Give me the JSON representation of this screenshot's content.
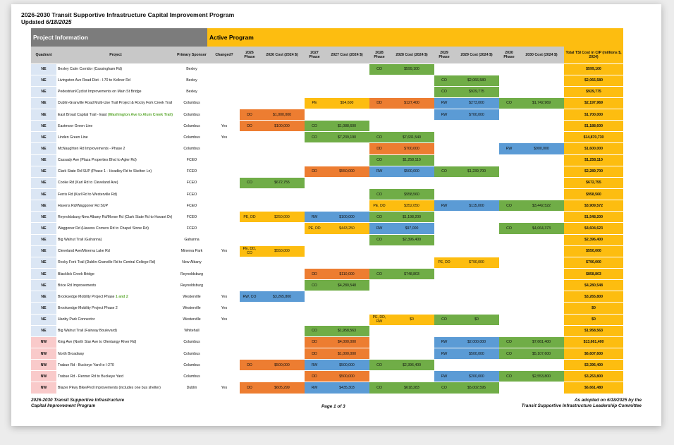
{
  "title": "2026-2030 Transit Supportive Infrastructure Capital Improvement Program",
  "updated_label": "Updated ",
  "updated_date": "6/18/2025",
  "sections": {
    "info": "Project Information",
    "active": "Active Program"
  },
  "columns": {
    "quadrant": "Quadrant",
    "project": "Project",
    "sponsor": "Primary Sponsor",
    "changed": "Changed?",
    "p26": "2026 Phase",
    "c26": "2026 Cost (2024 $)",
    "p27": "2027 Phase",
    "c27": "2027 Cost (2024 $)",
    "p28": "2028 Phase",
    "c28": "2028 Cost (2024 $)",
    "p29": "2029 Phase",
    "c29": "2029 Cost (2024 $)",
    "p30": "2030 Phase",
    "c30": "2030 Cost (2024 $)",
    "total": "Total TSI Cost in CIP (millions $, 2024)"
  },
  "phase_colors": {
    "CO": "#70ad47",
    "DD": "#ed7d31",
    "RW": "#5b9bd5",
    "PE": "#fdbd10"
  },
  "rows": [
    {
      "q": "NE",
      "project": "Bexley Calm Corridor (Cassingham Rd)",
      "sponsor": "Bexley",
      "changed": "",
      "years": [
        null,
        null,
        [
          "CO",
          "$599,100"
        ],
        null,
        null
      ],
      "total": "$599,100"
    },
    {
      "q": "NE",
      "project": "Livingston Ave Road Diet - I-70 to Kellner Rd",
      "sponsor": "Bexley",
      "changed": "",
      "years": [
        null,
        null,
        null,
        [
          "CO",
          "$2,066,580"
        ],
        null
      ],
      "total": "$2,066,580"
    },
    {
      "q": "NE",
      "project": "Pedestrian/Cyclist Improvements on Main St Bridge",
      "sponsor": "Bexley",
      "changed": "",
      "years": [
        null,
        null,
        null,
        [
          "CO",
          "$929,775"
        ],
        null
      ],
      "total": "$929,775"
    },
    {
      "q": "NE",
      "project": "Dublin-Granville Road Multi-Use Trail Project & Rocky Fork Creek Trail",
      "sponsor": "Columbus",
      "changed": "",
      "years": [
        null,
        [
          "PE",
          "$54,600"
        ],
        [
          "DD",
          "$127,400"
        ],
        [
          "RW",
          "$273,000"
        ],
        [
          "CO",
          "$1,742,969"
        ]
      ],
      "total": "$2,197,969"
    },
    {
      "q": "NE",
      "project": "East Broad Capital Trail - East ",
      "project_green": "(Washington Ave to Alum Creek Trail)",
      "sponsor": "Columbus",
      "changed": "",
      "years": [
        [
          "DD",
          "$1,000,000"
        ],
        null,
        null,
        [
          "RW",
          "$700,000"
        ],
        null
      ],
      "total": "$1,700,000"
    },
    {
      "q": "NE",
      "project": "Eastmoor Green Line",
      "sponsor": "Columbus",
      "changed": "Yes",
      "years": [
        [
          "DD",
          "$100,000"
        ],
        [
          "CO",
          "$1,088,600"
        ],
        null,
        null,
        null
      ],
      "total": "$1,188,600"
    },
    {
      "q": "NE",
      "project": "Linden Green Line",
      "sponsor": "Columbus",
      "changed": "Yes",
      "years": [
        null,
        [
          "CO",
          "$7,239,190"
        ],
        [
          "CO",
          "$7,631,540"
        ],
        null,
        null
      ],
      "total": "$14,870,730"
    },
    {
      "q": "NE",
      "project": "McNaughten Rd Improvements - Phase 2",
      "sponsor": "Columbus",
      "changed": "",
      "years": [
        null,
        null,
        [
          "DD",
          "$700,000"
        ],
        null,
        [
          "RW",
          "$900,000"
        ]
      ],
      "total": "$1,600,000"
    },
    {
      "q": "NE",
      "project": "Cassady Ave (Plaza Properties Blvd to Agler Rd)",
      "sponsor": "FCEO",
      "changed": "",
      "years": [
        null,
        null,
        [
          "CO",
          "$1,258,110"
        ],
        null,
        null
      ],
      "total": "$1,258,110"
    },
    {
      "q": "NE",
      "project": "Clark State Rd SUP (Phase 1 - Headley Rd to Skelton Ln)",
      "sponsor": "FCEO",
      "changed": "",
      "years": [
        null,
        [
          "DD",
          "$550,000"
        ],
        [
          "RW",
          "$500,000"
        ],
        [
          "CO",
          "$1,239,700"
        ],
        null
      ],
      "total": "$2,289,700"
    },
    {
      "q": "NE",
      "project": "Cooke Rd (Karl Rd to Cleveland Ave)",
      "sponsor": "FCEO",
      "changed": "",
      "years": [
        [
          "CO",
          "$672,755"
        ],
        null,
        null,
        null,
        null
      ],
      "total": "$672,755"
    },
    {
      "q": "NE",
      "project": "Ferris Rd (Karl Rd to Westerville Rd)",
      "sponsor": "FCEO",
      "changed": "",
      "years": [
        null,
        null,
        [
          "CO",
          "$958,560"
        ],
        null,
        null
      ],
      "total": "$958,560"
    },
    {
      "q": "NE",
      "project": "Havens Rd/Waggoner Rd SUP",
      "sponsor": "FCEO",
      "changed": "",
      "years": [
        null,
        null,
        [
          "PE, DD",
          "$352,050"
        ],
        [
          "RW",
          "$115,000"
        ],
        [
          "CO",
          "$3,442,522"
        ]
      ],
      "total": "$3,909,572"
    },
    {
      "q": "NE",
      "project": "Reynoldsburg-New Albany Rd/Morse Rd (Clark State Rd to Havant Dr)",
      "sponsor": "FCEO",
      "changed": "",
      "years": [
        [
          "PE, DD",
          "$250,000"
        ],
        [
          "RW",
          "$100,000"
        ],
        [
          "CO",
          "$1,198,200"
        ],
        null,
        null
      ],
      "total": "$1,548,200"
    },
    {
      "q": "NE",
      "project": "Waggoner Rd (Havens Corners Rd to Chapel Stone Rd)",
      "sponsor": "FCEO",
      "changed": "",
      "years": [
        null,
        [
          "PE, DD",
          "$443,250"
        ],
        [
          "RW",
          "$97,000"
        ],
        null,
        [
          "CO",
          "$4,064,373"
        ]
      ],
      "total": "$4,604,623"
    },
    {
      "q": "NE",
      "project": "Big Walnut Trail (Gahanna)",
      "sponsor": "Gahanna",
      "changed": "",
      "years": [
        null,
        null,
        [
          "CO",
          "$2,396,400"
        ],
        null,
        null
      ],
      "total": "$2,396,400"
    },
    {
      "q": "NE",
      "project": "Cleveland Ave/Minerva Lake Rd",
      "sponsor": "Minerva Park",
      "changed": "Yes",
      "years": [
        [
          "PE, DD, CO",
          "$550,000"
        ],
        null,
        null,
        null,
        null
      ],
      "total": "$550,000"
    },
    {
      "q": "NE",
      "project": "Rocky Fork Trail (Dublin-Granville Rd to Central College Rd)",
      "sponsor": "New Albany",
      "changed": "",
      "years": [
        null,
        null,
        null,
        [
          "PE, DD",
          "$790,000"
        ],
        null
      ],
      "total": "$790,000"
    },
    {
      "q": "NE",
      "project": "Blacklick Creek Bridge",
      "sponsor": "Reynoldsburg",
      "changed": "",
      "years": [
        null,
        [
          "DD",
          "$110,000"
        ],
        [
          "CO",
          "$748,803"
        ],
        null,
        null
      ],
      "total": "$858,803"
    },
    {
      "q": "NE",
      "project": "Brice Rd Improvements",
      "sponsor": "Reynoldsburg",
      "changed": "",
      "years": [
        null,
        [
          "CO",
          "$4,280,548"
        ],
        null,
        null,
        null
      ],
      "total": "$4,280,548"
    },
    {
      "q": "NE",
      "project": "Brooksedge Mobility Project Phase ",
      "project_green": "1 and 2",
      "sponsor": "Westerville",
      "changed": "Yes",
      "years": [
        [
          "RW, CO",
          "$3,265,800"
        ],
        null,
        null,
        null,
        null
      ],
      "total": "$3,265,800"
    },
    {
      "q": "NE",
      "project": "Brooksedge Mobility Project Phase 2",
      "sponsor": "Westerville",
      "changed": "Yes",
      "years": [
        null,
        null,
        null,
        null,
        null
      ],
      "total": "$0"
    },
    {
      "q": "NE",
      "project": "Hanby Park Connector",
      "sponsor": "Westerville",
      "changed": "Yes",
      "years": [
        null,
        null,
        [
          "PE, DD, RW",
          "$0"
        ],
        [
          "CO",
          "$0"
        ],
        null
      ],
      "total": "$0"
    },
    {
      "q": "NE",
      "project": "Big Walnut Trail (Fairway Boulevard)",
      "sponsor": "Whitehall",
      "changed": "",
      "years": [
        null,
        [
          "CO",
          "$1,958,563"
        ],
        null,
        null,
        null
      ],
      "total": "$1,958,563"
    },
    {
      "q": "NW",
      "project": "King Ave (North Star Ave to Olentangy River Rd)",
      "sponsor": "Columbus",
      "changed": "",
      "years": [
        null,
        [
          "DD",
          "$4,000,000"
        ],
        null,
        [
          "RW",
          "$2,000,000"
        ],
        [
          "CO",
          "$7,661,400"
        ]
      ],
      "total": "$13,661,400"
    },
    {
      "q": "NW",
      "project": "North Broadway",
      "sponsor": "Columbus",
      "changed": "",
      "years": [
        null,
        [
          "DD",
          "$1,000,000"
        ],
        null,
        [
          "RW",
          "$500,000"
        ],
        [
          "CO",
          "$5,107,600"
        ]
      ],
      "total": "$6,607,600"
    },
    {
      "q": "NW",
      "project": "Trabue Rd - Buckeye Yard to I-270",
      "sponsor": "Columbus",
      "changed": "",
      "years": [
        [
          "DD",
          "$500,000"
        ],
        [
          "RW",
          "$500,000"
        ],
        [
          "CO",
          "$2,396,400"
        ],
        null,
        null
      ],
      "total": "$3,396,400"
    },
    {
      "q": "NW",
      "project": "Trabue Rd - Renner Rd to Buckeye Yard",
      "sponsor": "Columbus",
      "changed": "",
      "years": [
        null,
        [
          "DD",
          "$500,000"
        ],
        null,
        [
          "RW",
          "$200,000"
        ],
        [
          "CO",
          "$2,553,800"
        ]
      ],
      "total": "$3,253,800"
    },
    {
      "q": "NW",
      "project": "Blazer Pkwy Bike/Ped Improvements (includes one bus shelter)",
      "sponsor": "Dublin",
      "changed": "Yes",
      "years": [
        [
          "DD",
          "$605,299"
        ],
        [
          "RW",
          "$435,303"
        ],
        [
          "CO",
          "$618,283"
        ],
        [
          "CO",
          "$5,002,595"
        ],
        null
      ],
      "total": "$6,661,480"
    }
  ],
  "footer": {
    "left_line1": "2026-2030 Transit Supportive Infrastructure",
    "left_line2": "Capital Improvement Program",
    "center": "Page 1 of 3",
    "right_line1": "As adopted on 6/18/2025 by the",
    "right_line2": "Transit Supportive Infrastructure Leadership Committee"
  }
}
